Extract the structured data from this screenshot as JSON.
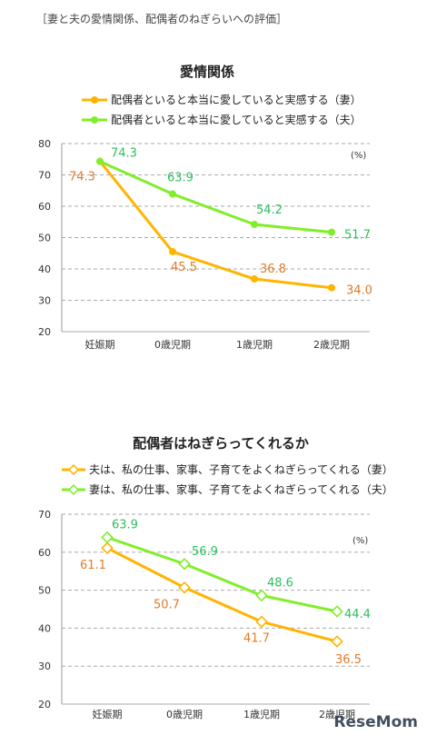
{
  "page_title": "［妻と夫の愛情関係、配偶者のねぎらいへの評価］",
  "watermark": "ReseMom",
  "colors": {
    "orange": "#ffb400",
    "green": "#80ee2a",
    "orange_label": "#e07b2a",
    "green_label": "#2dbf5c",
    "grid": "#aaaaaa"
  },
  "chart_data": [
    {
      "type": "line",
      "title": "愛情関係",
      "unit": "(%)",
      "categories": [
        "妊娠期",
        "0歳児期",
        "1歳児期",
        "2歳児期"
      ],
      "ylim": [
        20,
        80
      ],
      "yticks": [
        20,
        30,
        40,
        50,
        60,
        70,
        80
      ],
      "grid": true,
      "legend_position": "top",
      "series": [
        {
          "name": "配偶者といると本当に愛していると実感する（妻）",
          "values": [
            74.3,
            45.5,
            36.8,
            34.0
          ],
          "labels": [
            "74.3",
            "45.5",
            "36.8",
            "34.0"
          ],
          "color": "orange"
        },
        {
          "name": "配偶者といると本当に愛していると実感する（夫）",
          "values": [
            74.3,
            63.9,
            54.2,
            51.7
          ],
          "labels": [
            "74.3",
            "63.9",
            "54.2",
            "51.7"
          ],
          "color": "green"
        }
      ]
    },
    {
      "type": "line",
      "title": "配偶者はねぎらってくれるか",
      "unit": "(%)",
      "categories": [
        "妊娠期",
        "0歳児期",
        "1歳児期",
        "2歳児期"
      ],
      "ylim": [
        20,
        70
      ],
      "yticks": [
        20,
        30,
        40,
        50,
        60,
        70
      ],
      "grid": true,
      "legend_position": "top",
      "series": [
        {
          "name": "夫は、私の仕事、家事、子育てをよくねぎらってくれる（妻）",
          "values": [
            61.1,
            50.7,
            41.7,
            36.5
          ],
          "labels": [
            "61.1",
            "50.7",
            "41.7",
            "36.5"
          ],
          "color": "orange"
        },
        {
          "name": "妻は、私の仕事、家事、子育てをよくねぎらってくれる（夫）",
          "values": [
            63.9,
            56.9,
            48.6,
            44.4
          ],
          "labels": [
            "63.9",
            "56.9",
            "48.6",
            "44.4"
          ],
          "color": "green"
        }
      ]
    }
  ]
}
